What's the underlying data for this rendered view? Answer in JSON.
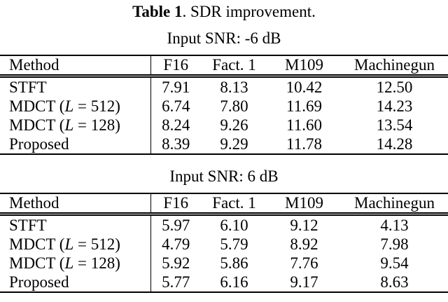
{
  "caption": {
    "label": "Table 1",
    "text": ". SDR improvement."
  },
  "tables": [
    {
      "subtitle": "Input SNR: -6 dB",
      "columns": [
        "Method",
        "F16",
        "Fact. 1",
        "M109",
        "Machinegun"
      ],
      "rows": [
        {
          "method": {
            "pre": "STFT",
            "var": "",
            "post": ""
          },
          "cells": [
            {
              "v": "7.91",
              "b": false
            },
            {
              "v": "8.13",
              "b": false
            },
            {
              "v": "10.42",
              "b": false
            },
            {
              "v": "12.50",
              "b": false
            }
          ]
        },
        {
          "method": {
            "pre": "MDCT (",
            "var": "L",
            "post": " = 512)"
          },
          "cells": [
            {
              "v": "6.74",
              "b": false
            },
            {
              "v": "7.80",
              "b": false
            },
            {
              "v": "11.69",
              "b": false
            },
            {
              "v": "14.23",
              "b": false
            }
          ]
        },
        {
          "method": {
            "pre": "MDCT (",
            "var": "L",
            "post": " = 128)"
          },
          "cells": [
            {
              "v": "8.24",
              "b": false
            },
            {
              "v": "9.26",
              "b": false
            },
            {
              "v": "11.60",
              "b": false
            },
            {
              "v": "13.54",
              "b": false
            }
          ]
        },
        {
          "method": {
            "pre": "Proposed",
            "var": "",
            "post": ""
          },
          "cells": [
            {
              "v": "8.39",
              "b": true
            },
            {
              "v": "9.29",
              "b": true
            },
            {
              "v": "11.78",
              "b": true
            },
            {
              "v": "14.28",
              "b": true
            }
          ]
        }
      ]
    },
    {
      "subtitle": "Input SNR: 6 dB",
      "columns": [
        "Method",
        "F16",
        "Fact. 1",
        "M109",
        "Machinegun"
      ],
      "rows": [
        {
          "method": {
            "pre": "STFT",
            "var": "",
            "post": ""
          },
          "cells": [
            {
              "v": "5.97",
              "b": true
            },
            {
              "v": "6.10",
              "b": false
            },
            {
              "v": "9.12",
              "b": false
            },
            {
              "v": "4.13",
              "b": false
            }
          ]
        },
        {
          "method": {
            "pre": "MDCT (",
            "var": "L",
            "post": " = 512)"
          },
          "cells": [
            {
              "v": "4.79",
              "b": false
            },
            {
              "v": "5.79",
              "b": false
            },
            {
              "v": "8.92",
              "b": false
            },
            {
              "v": "7.98",
              "b": false
            }
          ]
        },
        {
          "method": {
            "pre": "MDCT (",
            "var": "L",
            "post": " = 128)"
          },
          "cells": [
            {
              "v": "5.92",
              "b": false
            },
            {
              "v": "5.86",
              "b": false
            },
            {
              "v": "7.76",
              "b": false
            },
            {
              "v": "9.54",
              "b": true
            }
          ]
        },
        {
          "method": {
            "pre": "Proposed",
            "var": "",
            "post": ""
          },
          "cells": [
            {
              "v": "5.77",
              "b": false
            },
            {
              "v": "6.16",
              "b": true
            },
            {
              "v": "9.17",
              "b": true
            },
            {
              "v": "8.63",
              "b": false
            }
          ]
        }
      ]
    }
  ]
}
